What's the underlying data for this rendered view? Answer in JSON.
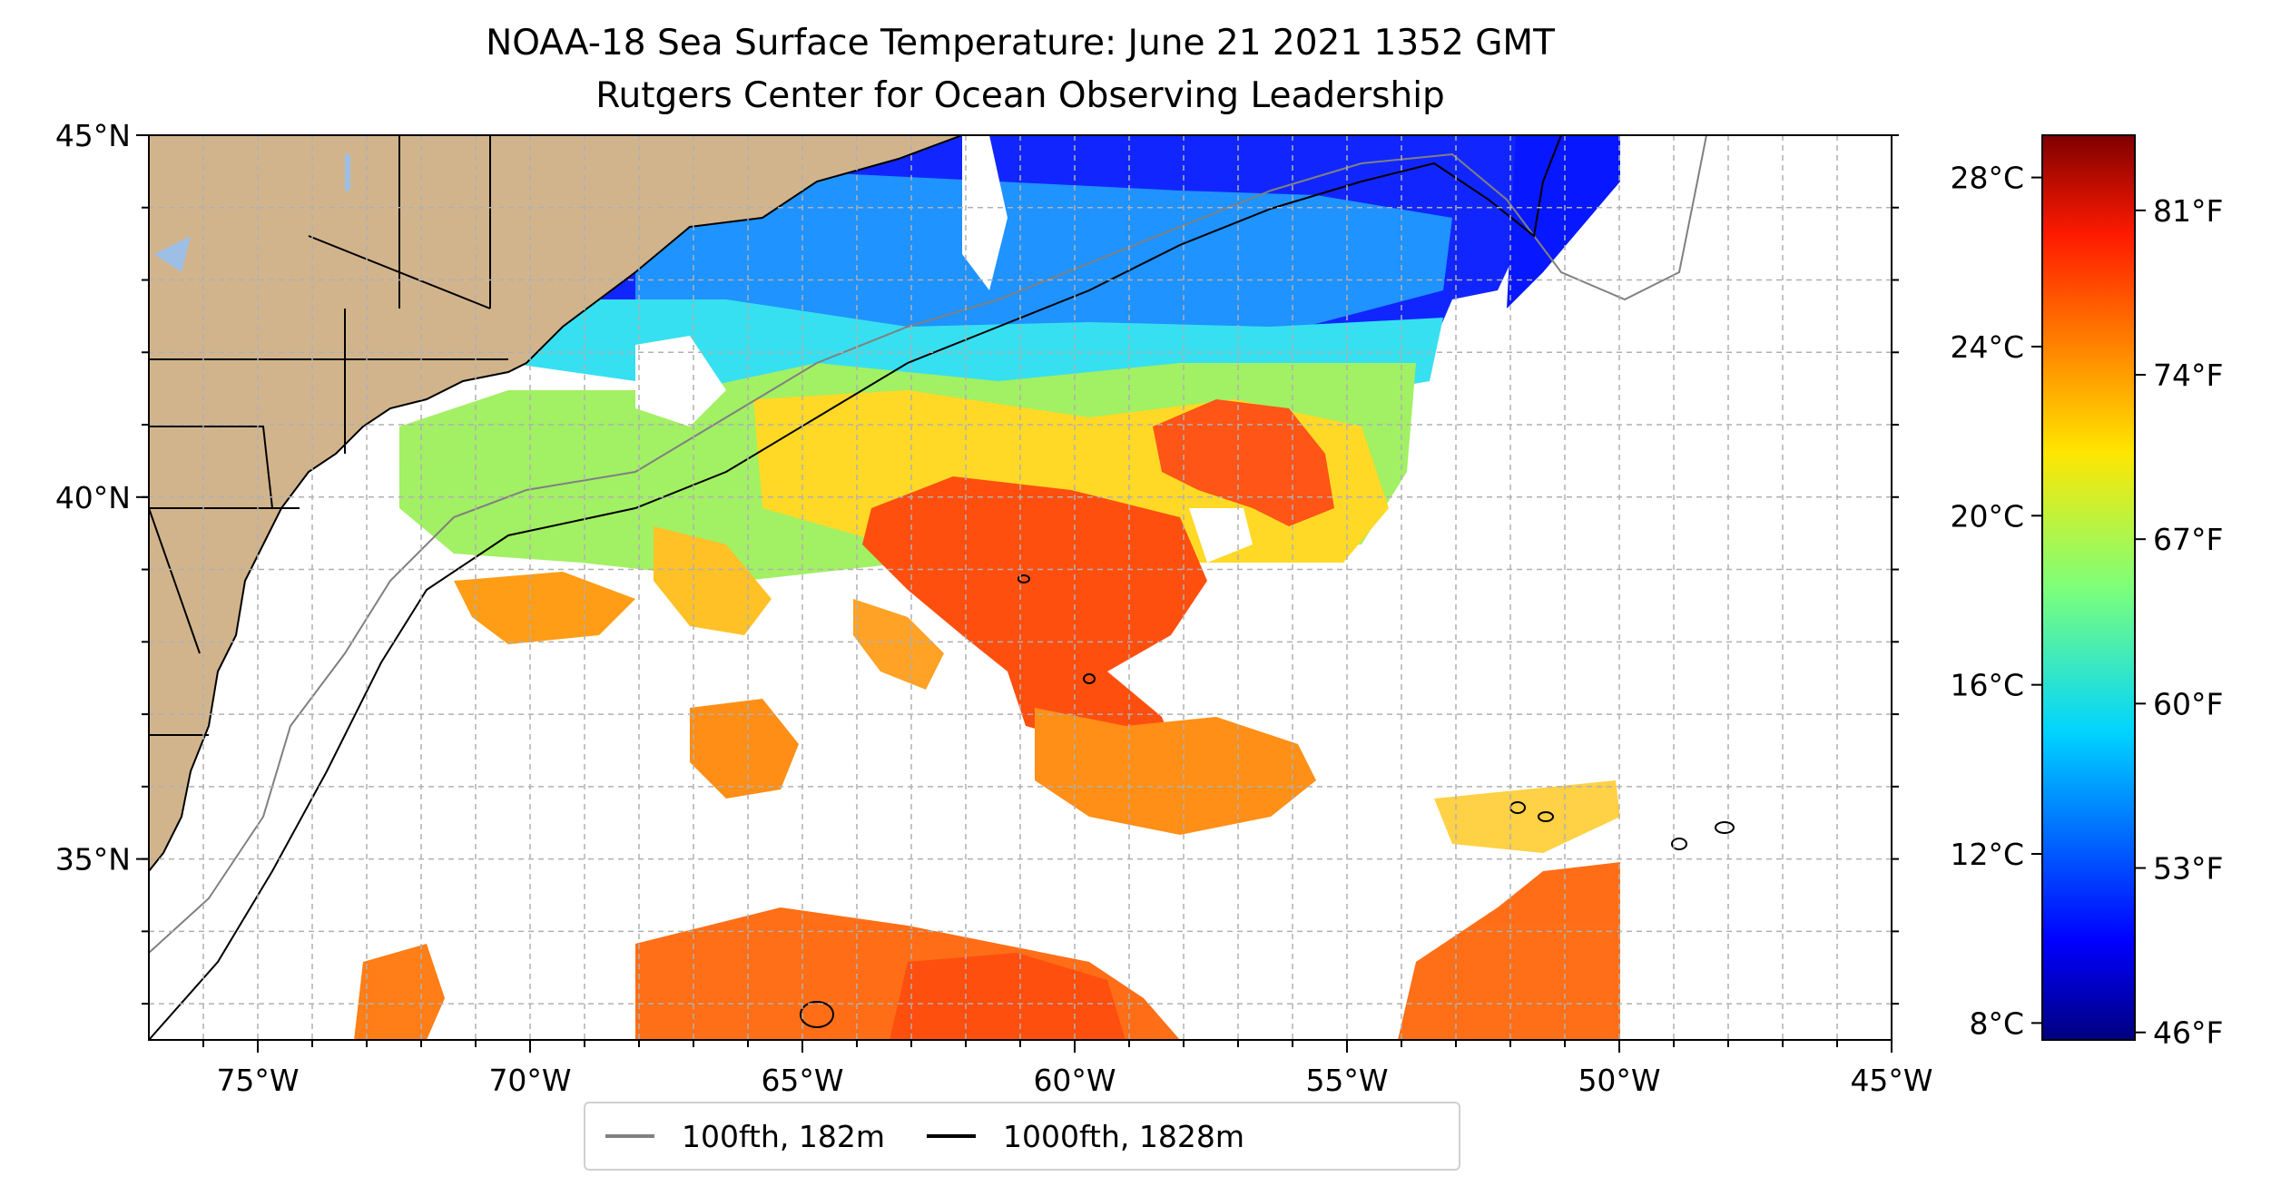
{
  "title_line1": "NOAA-18 Sea Surface Temperature: June 21 2021 1352 GMT",
  "title_line2": "Rutgers Center for Ocean Observing Leadership",
  "map": {
    "lon_range": [
      -77,
      -45
    ],
    "lat_range": [
      32.5,
      45
    ],
    "colors": {
      "land": "#d2b48c",
      "lakes": "#9dbfe6",
      "grid": "#b0b0b0",
      "coast": "#000000",
      "isobath_100": "#808080",
      "isobath_1000": "#000000"
    },
    "x_ticks": [
      "75°W",
      "70°W",
      "65°W",
      "60°W",
      "55°W",
      "50°W",
      "45°W"
    ],
    "x_tick_values": [
      -75,
      -70,
      -65,
      -60,
      -55,
      -50,
      -45
    ],
    "y_ticks": [
      "35°N",
      "40°N",
      "45°N"
    ],
    "y_tick_values": [
      35,
      40,
      45
    ]
  },
  "legend": {
    "items": [
      {
        "label": "100fth, 182m",
        "color": "#808080"
      },
      {
        "label": "1000fth, 1828m",
        "color": "#000000"
      }
    ]
  },
  "colorbar": {
    "colormap": "jet",
    "range_c": [
      7.6,
      29.0
    ],
    "celsius_ticks": [
      "8°C",
      "12°C",
      "16°C",
      "20°C",
      "24°C",
      "28°C"
    ],
    "celsius_values": [
      8,
      12,
      16,
      20,
      24,
      28
    ],
    "fahrenheit_ticks": [
      "46°F",
      "53°F",
      "60°F",
      "67°F",
      "74°F",
      "81°F"
    ],
    "fahrenheit_values": [
      46,
      53,
      60,
      67,
      74,
      81
    ]
  }
}
